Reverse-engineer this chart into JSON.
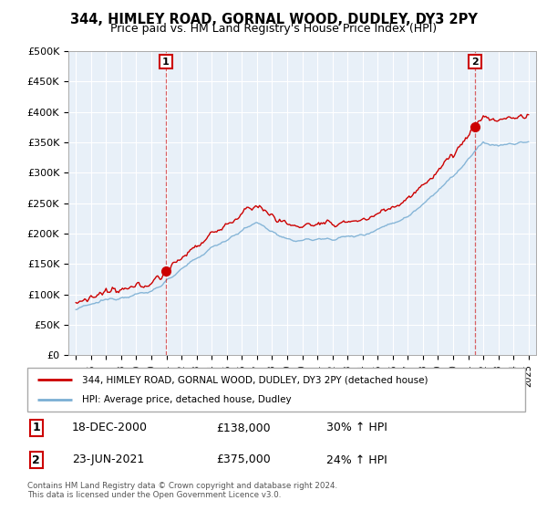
{
  "title": "344, HIMLEY ROAD, GORNAL WOOD, DUDLEY, DY3 2PY",
  "subtitle": "Price paid vs. HM Land Registry's House Price Index (HPI)",
  "ylim": [
    0,
    500000
  ],
  "yticks": [
    0,
    50000,
    100000,
    150000,
    200000,
    250000,
    300000,
    350000,
    400000,
    450000,
    500000
  ],
  "ytick_labels": [
    "£0",
    "£50K",
    "£100K",
    "£150K",
    "£200K",
    "£250K",
    "£300K",
    "£350K",
    "£400K",
    "£450K",
    "£500K"
  ],
  "sale1_t": 2000.958,
  "sale1_price": 138000,
  "sale2_t": 2021.458,
  "sale2_price": 375000,
  "hpi_color": "#7bafd4",
  "price_color": "#cc0000",
  "chart_bg": "#e8f0f8",
  "grid_color": "#ffffff",
  "legend_label1": "344, HIMLEY ROAD, GORNAL WOOD, DUDLEY, DY3 2PY (detached house)",
  "legend_label2": "HPI: Average price, detached house, Dudley",
  "table_row1": [
    "1",
    "18-DEC-2000",
    "£138,000",
    "30% ↑ HPI"
  ],
  "table_row2": [
    "2",
    "23-JUN-2021",
    "£375,000",
    "24% ↑ HPI"
  ],
  "footer": "Contains HM Land Registry data © Crown copyright and database right 2024.\nThis data is licensed under the Open Government Licence v3.0."
}
